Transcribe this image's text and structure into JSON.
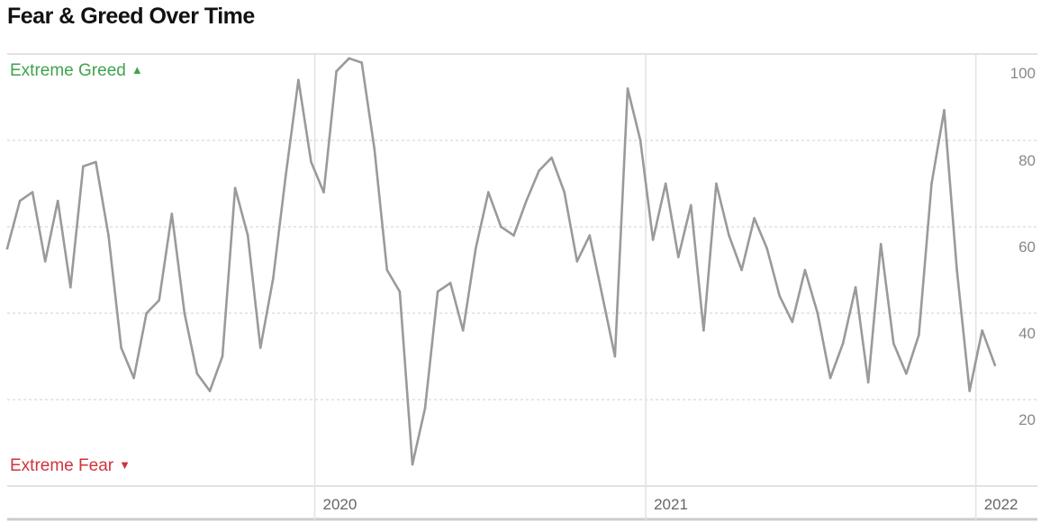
{
  "title": "Fear & Greed Over Time",
  "zones": {
    "top_label": "Extreme Greed",
    "top_icon": "triangle-up-icon",
    "bottom_label": "Extreme Fear",
    "bottom_icon": "triangle-down-icon"
  },
  "colors": {
    "line": "#9a9a9a",
    "grid": "#cfcfcf",
    "greed": "#3fa34d",
    "fear": "#d0343b",
    "axis_text": "#888888"
  },
  "chart_data": {
    "type": "line",
    "title": "Fear & Greed Over Time",
    "xlabel": "",
    "ylabel": "",
    "ylim": [
      0,
      100
    ],
    "xlim": [
      "2019-01-26",
      "2022-03-10"
    ],
    "y_ticks": [
      20,
      40,
      60,
      80,
      100
    ],
    "x_ticks": [
      "2020",
      "2021",
      "2022"
    ],
    "x_tick_dates": [
      "2020-01-01",
      "2021-01-01",
      "2022-01-01"
    ],
    "grid": true,
    "series": [
      {
        "x": [
          "2019-01-26",
          "2019-02-09",
          "2019-02-23",
          "2019-03-09",
          "2019-03-23",
          "2019-04-06",
          "2019-04-20",
          "2019-05-04",
          "2019-05-18",
          "2019-06-01",
          "2019-06-15",
          "2019-06-29",
          "2019-07-13",
          "2019-07-27",
          "2019-08-10",
          "2019-08-24",
          "2019-09-07",
          "2019-09-21",
          "2019-10-05",
          "2019-10-19",
          "2019-11-02",
          "2019-11-16",
          "2019-11-30",
          "2019-12-14",
          "2019-12-28",
          "2020-01-11",
          "2020-01-25",
          "2020-02-08",
          "2020-02-22",
          "2020-03-07",
          "2020-03-21",
          "2020-04-04",
          "2020-04-18",
          "2020-05-02",
          "2020-05-16",
          "2020-05-30",
          "2020-06-13",
          "2020-06-27",
          "2020-07-11",
          "2020-07-25",
          "2020-08-08",
          "2020-08-22",
          "2020-09-05",
          "2020-09-19",
          "2020-10-03",
          "2020-10-17",
          "2020-10-31",
          "2020-11-14",
          "2020-11-28",
          "2020-12-12",
          "2020-12-26",
          "2021-01-09",
          "2021-01-23",
          "2021-02-06",
          "2021-02-20",
          "2021-03-06",
          "2021-03-20",
          "2021-04-03",
          "2021-04-17",
          "2021-05-01",
          "2021-05-15",
          "2021-05-29",
          "2021-06-12",
          "2021-06-26",
          "2021-07-10",
          "2021-07-24",
          "2021-08-07",
          "2021-08-21",
          "2021-09-04",
          "2021-09-18",
          "2021-10-02",
          "2021-10-16",
          "2021-10-30",
          "2021-11-13",
          "2021-11-27",
          "2021-12-11",
          "2021-12-25",
          "2022-01-08",
          "2022-01-22"
        ],
        "values": [
          55,
          66,
          68,
          52,
          66,
          46,
          74,
          75,
          58,
          32,
          25,
          40,
          43,
          63,
          40,
          26,
          22,
          30,
          69,
          58,
          32,
          48,
          72,
          94,
          75,
          68,
          96,
          99,
          98,
          78,
          50,
          45,
          5,
          18,
          45,
          47,
          36,
          55,
          68,
          60,
          58,
          66,
          73,
          76,
          68,
          52,
          58,
          44,
          30,
          92,
          80,
          57,
          70,
          53,
          65,
          36,
          70,
          58,
          50,
          62,
          55,
          44,
          38,
          50,
          40,
          25,
          33,
          46,
          24,
          56,
          33,
          26,
          35,
          70,
          87,
          50,
          22,
          36,
          28
        ]
      }
    ]
  }
}
